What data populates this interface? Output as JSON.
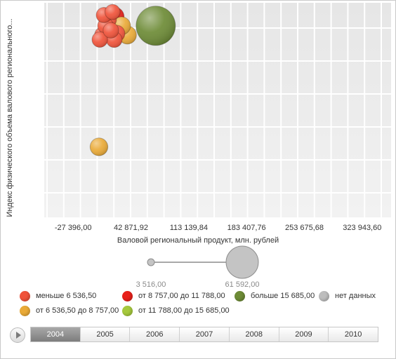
{
  "chart_data": {
    "type": "scatter",
    "subtype": "bubble",
    "xlabel": "Валовой региональный продукт, млн. рублей",
    "ylabel": "Индекс физического объема валового регионального...",
    "xlim": [
      -62529.16,
      359076.84
    ],
    "x_ticks": [
      -27396.0,
      42871.92,
      113139.84,
      183407.76,
      253675.68,
      323943.6
    ],
    "x_tick_labels": [
      "-27 396,00",
      "42 871,92",
      "113 139,84",
      "183 407,76",
      "253 675,68",
      "323 943,60"
    ],
    "ylim": [
      0,
      7
    ],
    "y_tick_labels_shown": false,
    "grid": true,
    "legend_position": "bottom",
    "size_scale": {
      "min_label": "3 516,00",
      "max_label": "61 592,00",
      "min_value": 3516.0,
      "max_value": 61592.0
    },
    "series": [
      {
        "name": "меньше 6 536,50",
        "color": "#f0533a",
        "points": [
          {
            "x": 5000,
            "y": 5.8,
            "size": 5000
          },
          {
            "x": 8500,
            "y": 5.95,
            "size": 5600
          },
          {
            "x": 12000,
            "y": 6.25,
            "size": 5200
          },
          {
            "x": 10000,
            "y": 6.6,
            "size": 4800
          },
          {
            "x": 15500,
            "y": 6.45,
            "size": 5500
          },
          {
            "x": 18500,
            "y": 6.1,
            "size": 5000
          },
          {
            "x": 22500,
            "y": 5.8,
            "size": 5300
          },
          {
            "x": 25500,
            "y": 6.0,
            "size": 6000
          },
          {
            "x": 20500,
            "y": 6.7,
            "size": 4600
          }
        ]
      },
      {
        "name": "от 6 536,50 до 8 757,00",
        "color": "#eaaa37",
        "points": [
          {
            "x": 4000,
            "y": 2.3,
            "size": 7600
          },
          {
            "x": 31500,
            "y": 6.25,
            "size": 7900
          },
          {
            "x": 38500,
            "y": 5.95,
            "size": 8100
          }
        ]
      },
      {
        "name": "от 8 757,00 до 11 788,00",
        "color": "#e8201a",
        "points": [
          {
            "x": 23000,
            "y": 6.55,
            "size": 9200
          }
        ]
      },
      {
        "name": "от 11 788,00 до 15 685,00",
        "color": "#a6c93d",
        "points": []
      },
      {
        "name": "больше 15 685,00",
        "color": "#6d8b36",
        "points": [
          {
            "x": 73000,
            "y": 6.25,
            "size": 61592
          }
        ]
      },
      {
        "name": "нет данных",
        "color": "#bdbdbd",
        "points": []
      }
    ]
  },
  "timeline": {
    "years": [
      "2004",
      "2005",
      "2006",
      "2007",
      "2008",
      "2009",
      "2010"
    ],
    "selected": "2004"
  }
}
